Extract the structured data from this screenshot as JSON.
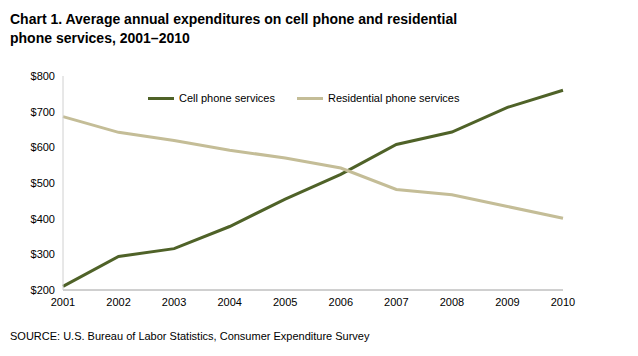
{
  "chart_data": {
    "type": "line",
    "title": "Chart 1. Average annual expenditures on cell phone and residential phone services, 2001–2010",
    "source": "SOURCE: U.S. Bureau of Labor Statistics, Consumer Expenditure Survey",
    "categories": [
      "2001",
      "2002",
      "2003",
      "2004",
      "2005",
      "2006",
      "2007",
      "2008",
      "2009",
      "2010"
    ],
    "series": [
      {
        "name": "Cell phone services",
        "color": "#4f6228",
        "values": [
          210,
          294,
          316,
          378,
          455,
          524,
          608,
          643,
          712,
          760
        ]
      },
      {
        "name": "Residential phone services",
        "color": "#c4bd97",
        "values": [
          686,
          642,
          619,
          592,
          570,
          542,
          482,
          467,
          434,
          401
        ]
      }
    ],
    "ylim": [
      200,
      800
    ],
    "yticks": [
      {
        "value": 200,
        "label": "$200"
      },
      {
        "value": 300,
        "label": "$300"
      },
      {
        "value": 400,
        "label": "$400"
      },
      {
        "value": 500,
        "label": "$500"
      },
      {
        "value": 600,
        "label": "$600"
      },
      {
        "value": 700,
        "label": "$700"
      },
      {
        "value": 800,
        "label": "$800"
      }
    ],
    "grid": false
  }
}
